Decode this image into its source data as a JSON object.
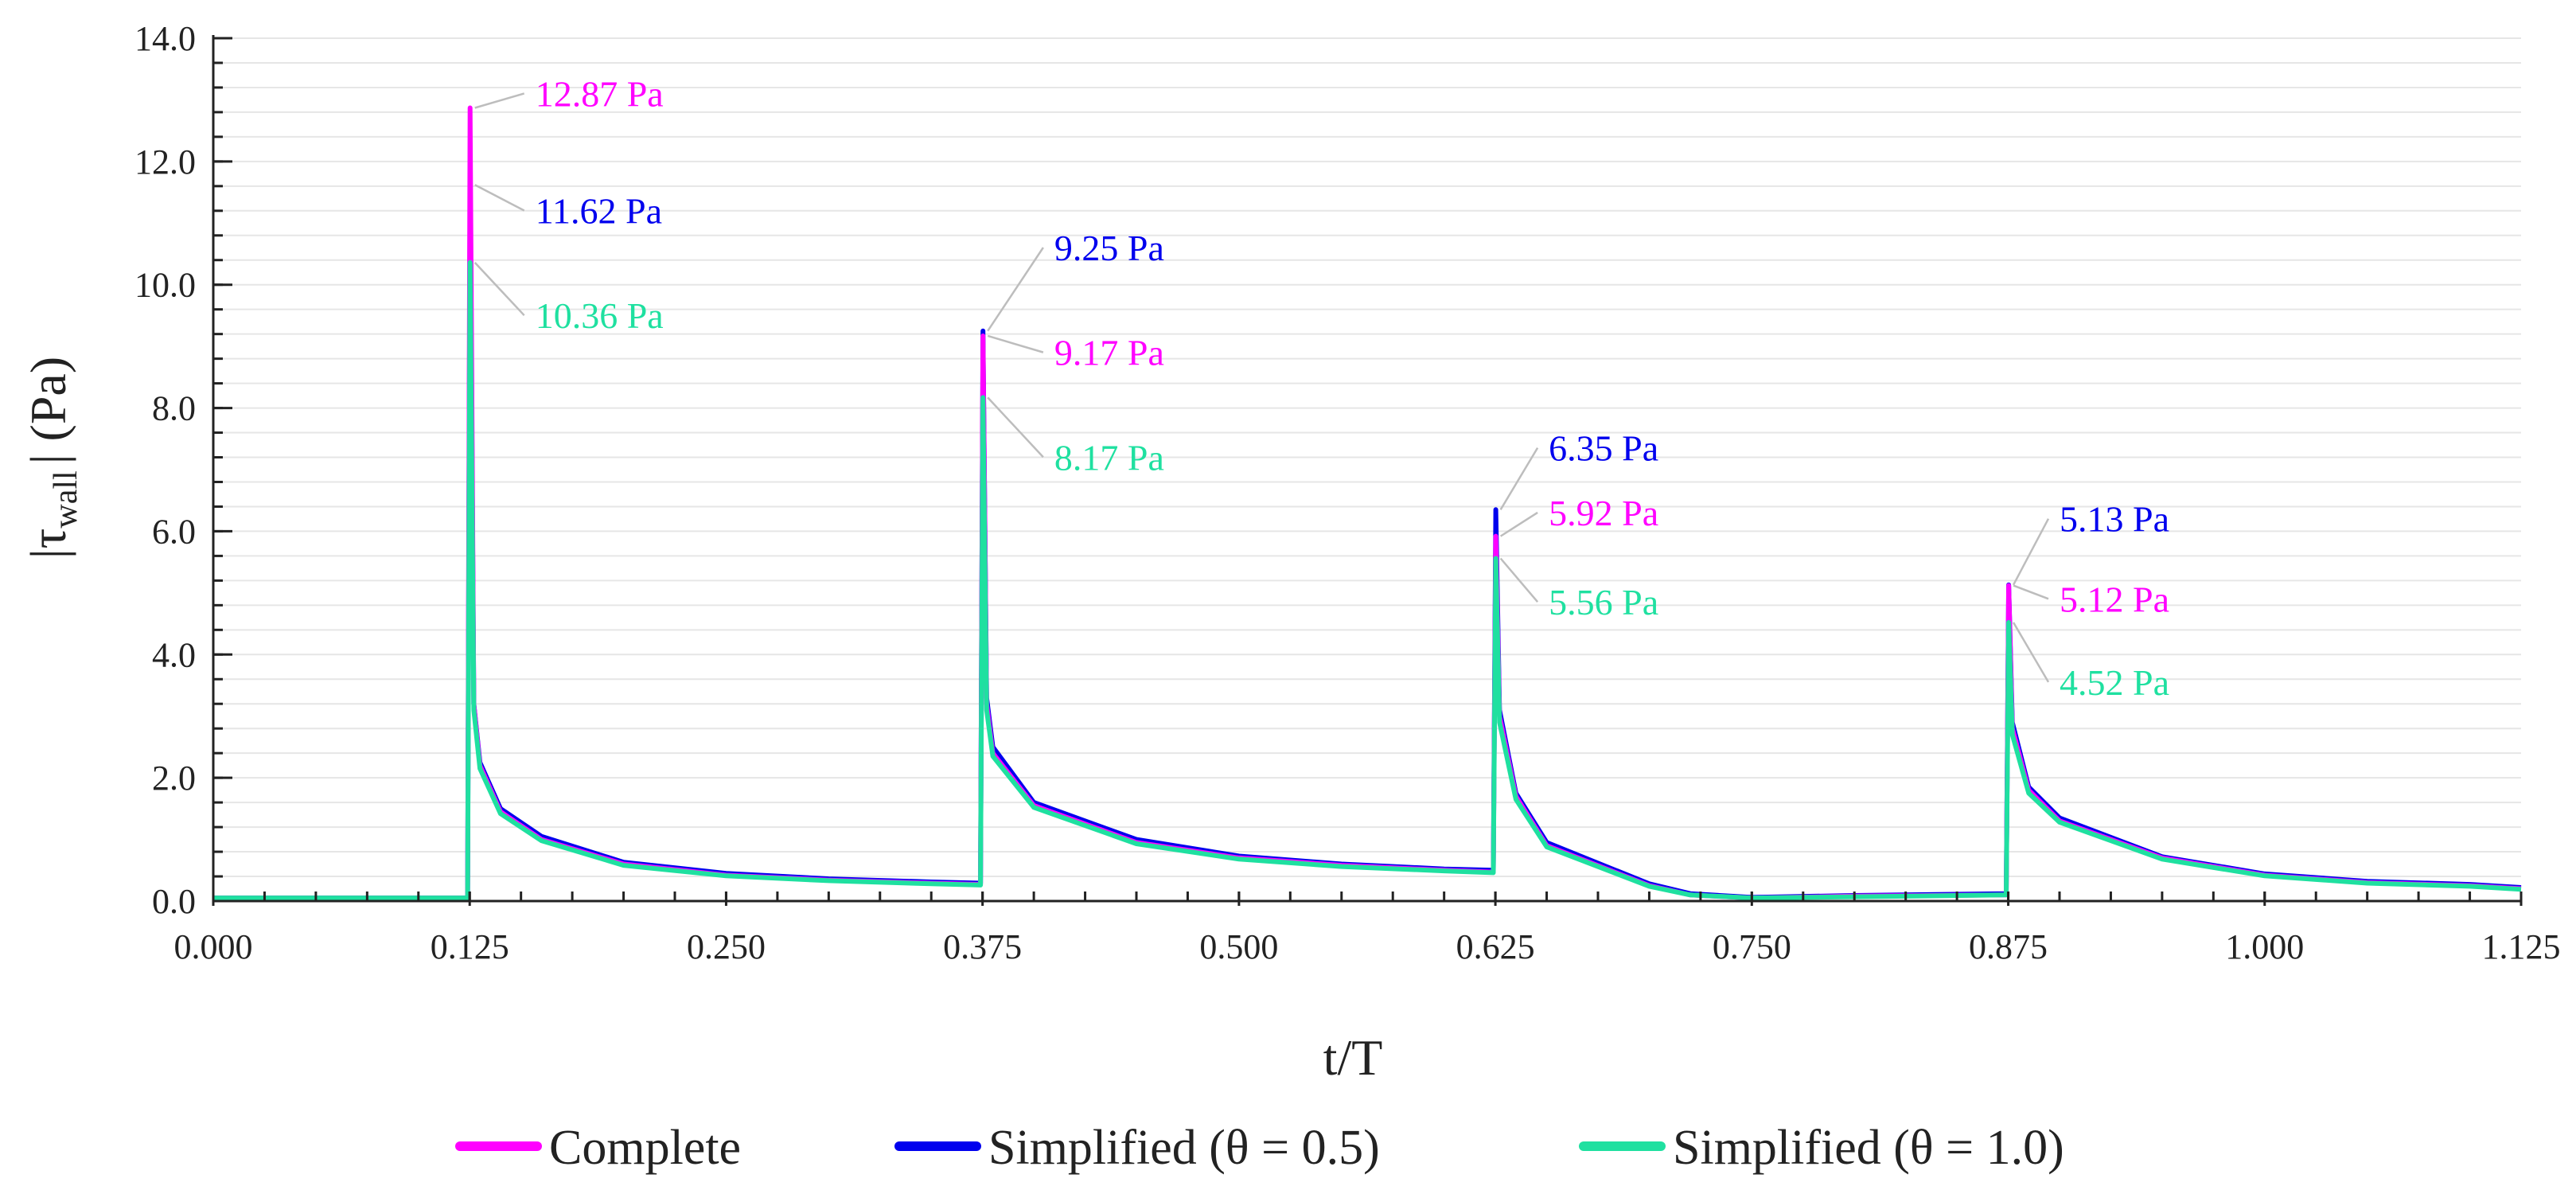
{
  "chart_data": {
    "type": "line",
    "title": "",
    "xlabel": "t/T",
    "ylabel_prefix": "|τ",
    "ylabel_sub": "wall",
    "ylabel_suffix": "| (Pa)",
    "xlim": [
      0,
      1.125
    ],
    "ylim": [
      0,
      14
    ],
    "x_ticks": [
      0,
      0.125,
      0.25,
      0.375,
      0.5,
      0.625,
      0.75,
      0.875,
      1.0,
      1.125
    ],
    "x_tick_labels": [
      "0.000",
      "0.125",
      "0.250",
      "0.375",
      "0.500",
      "0.625",
      "0.750",
      "0.875",
      "1.000",
      "1.125"
    ],
    "y_ticks": [
      0,
      2,
      4,
      6,
      8,
      10,
      12,
      14
    ],
    "y_tick_labels": [
      "0.0",
      "2.0",
      "4.0",
      "6.0",
      "8.0",
      "10.0",
      "12.0",
      "14.0"
    ],
    "grid": true,
    "legend_position": "bottom",
    "series": [
      {
        "name": "Complete",
        "color": "#ff00ff",
        "points": [
          [
            0,
            0.05
          ],
          [
            0.124,
            0.05
          ],
          [
            0.1252,
            12.87
          ],
          [
            0.127,
            3.2
          ],
          [
            0.13,
            2.2
          ],
          [
            0.14,
            1.45
          ],
          [
            0.16,
            1.0
          ],
          [
            0.2,
            0.6
          ],
          [
            0.25,
            0.42
          ],
          [
            0.3,
            0.34
          ],
          [
            0.35,
            0.29
          ],
          [
            0.374,
            0.27
          ],
          [
            0.3752,
            9.17
          ],
          [
            0.377,
            3.2
          ],
          [
            0.38,
            2.4
          ],
          [
            0.4,
            1.55
          ],
          [
            0.45,
            0.95
          ],
          [
            0.5,
            0.7
          ],
          [
            0.55,
            0.58
          ],
          [
            0.6,
            0.5
          ],
          [
            0.624,
            0.47
          ],
          [
            0.6252,
            5.92
          ],
          [
            0.627,
            3.0
          ],
          [
            0.635,
            1.7
          ],
          [
            0.65,
            0.9
          ],
          [
            0.7,
            0.25
          ],
          [
            0.72,
            0.1
          ],
          [
            0.75,
            0.05
          ],
          [
            0.8,
            0.08
          ],
          [
            0.874,
            0.1
          ],
          [
            0.8752,
            5.12
          ],
          [
            0.877,
            2.8
          ],
          [
            0.885,
            1.8
          ],
          [
            0.9,
            1.3
          ],
          [
            0.95,
            0.7
          ],
          [
            1.0,
            0.42
          ],
          [
            1.05,
            0.3
          ],
          [
            1.1,
            0.25
          ],
          [
            1.125,
            0.2
          ]
        ]
      },
      {
        "name": "Simplified (θ = 0.5)",
        "color": "#0000ee",
        "points": [
          [
            0,
            0.05
          ],
          [
            0.124,
            0.05
          ],
          [
            0.1252,
            11.62
          ],
          [
            0.127,
            3.2
          ],
          [
            0.13,
            2.25
          ],
          [
            0.14,
            1.5
          ],
          [
            0.16,
            1.05
          ],
          [
            0.2,
            0.63
          ],
          [
            0.25,
            0.45
          ],
          [
            0.3,
            0.36
          ],
          [
            0.35,
            0.31
          ],
          [
            0.374,
            0.29
          ],
          [
            0.3752,
            9.25
          ],
          [
            0.377,
            3.3
          ],
          [
            0.38,
            2.5
          ],
          [
            0.4,
            1.6
          ],
          [
            0.45,
            1.0
          ],
          [
            0.5,
            0.73
          ],
          [
            0.55,
            0.6
          ],
          [
            0.6,
            0.52
          ],
          [
            0.624,
            0.5
          ],
          [
            0.6252,
            6.35
          ],
          [
            0.627,
            3.1
          ],
          [
            0.635,
            1.75
          ],
          [
            0.65,
            0.95
          ],
          [
            0.7,
            0.28
          ],
          [
            0.72,
            0.12
          ],
          [
            0.75,
            0.06
          ],
          [
            0.8,
            0.09
          ],
          [
            0.874,
            0.12
          ],
          [
            0.8752,
            5.13
          ],
          [
            0.877,
            2.9
          ],
          [
            0.885,
            1.85
          ],
          [
            0.9,
            1.35
          ],
          [
            0.95,
            0.72
          ],
          [
            1.0,
            0.44
          ],
          [
            1.05,
            0.32
          ],
          [
            1.1,
            0.27
          ],
          [
            1.125,
            0.22
          ]
        ]
      },
      {
        "name": "Simplified (θ = 1.0)",
        "color": "#1fe0a0",
        "points": [
          [
            0,
            0.05
          ],
          [
            0.124,
            0.05
          ],
          [
            0.1252,
            10.36
          ],
          [
            0.127,
            3.1
          ],
          [
            0.13,
            2.15
          ],
          [
            0.14,
            1.42
          ],
          [
            0.16,
            0.98
          ],
          [
            0.2,
            0.58
          ],
          [
            0.25,
            0.41
          ],
          [
            0.3,
            0.33
          ],
          [
            0.35,
            0.28
          ],
          [
            0.374,
            0.26
          ],
          [
            0.3752,
            8.17
          ],
          [
            0.377,
            3.1
          ],
          [
            0.38,
            2.35
          ],
          [
            0.4,
            1.52
          ],
          [
            0.45,
            0.93
          ],
          [
            0.5,
            0.68
          ],
          [
            0.55,
            0.56
          ],
          [
            0.6,
            0.49
          ],
          [
            0.624,
            0.46
          ],
          [
            0.6252,
            5.56
          ],
          [
            0.627,
            2.9
          ],
          [
            0.635,
            1.65
          ],
          [
            0.65,
            0.88
          ],
          [
            0.7,
            0.24
          ],
          [
            0.72,
            0.1
          ],
          [
            0.75,
            0.05
          ],
          [
            0.8,
            0.07
          ],
          [
            0.874,
            0.1
          ],
          [
            0.8752,
            4.52
          ],
          [
            0.877,
            2.7
          ],
          [
            0.885,
            1.75
          ],
          [
            0.9,
            1.28
          ],
          [
            0.95,
            0.68
          ],
          [
            1.0,
            0.41
          ],
          [
            1.05,
            0.29
          ],
          [
            1.1,
            0.24
          ],
          [
            1.125,
            0.19
          ]
        ]
      }
    ],
    "annotations": [
      {
        "text": "12.87 Pa",
        "series": 0,
        "x": 0.1252,
        "y": 12.87,
        "text_x": 0.157,
        "text_y": 13.0
      },
      {
        "text": "11.62 Pa",
        "series": 1,
        "x": 0.1252,
        "y": 11.62,
        "text_x": 0.157,
        "text_y": 11.1
      },
      {
        "text": "10.36 Pa",
        "series": 2,
        "x": 0.1252,
        "y": 10.36,
        "text_x": 0.157,
        "text_y": 9.4
      },
      {
        "text": "9.25 Pa",
        "series": 1,
        "x": 0.3752,
        "y": 9.25,
        "text_x": 0.41,
        "text_y": 10.5
      },
      {
        "text": "9.17 Pa",
        "series": 0,
        "x": 0.3752,
        "y": 9.17,
        "text_x": 0.41,
        "text_y": 8.8
      },
      {
        "text": "8.17 Pa",
        "series": 2,
        "x": 0.3752,
        "y": 8.17,
        "text_x": 0.41,
        "text_y": 7.1
      },
      {
        "text": "6.35 Pa",
        "series": 1,
        "x": 0.6252,
        "y": 6.35,
        "text_x": 0.651,
        "text_y": 7.25
      },
      {
        "text": "5.92 Pa",
        "series": 0,
        "x": 0.6252,
        "y": 5.92,
        "text_x": 0.651,
        "text_y": 6.2
      },
      {
        "text": "5.56 Pa",
        "series": 2,
        "x": 0.6252,
        "y": 5.56,
        "text_x": 0.651,
        "text_y": 4.75
      },
      {
        "text": "5.13 Pa",
        "series": 1,
        "x": 0.8752,
        "y": 5.13,
        "text_x": 0.9,
        "text_y": 6.1
      },
      {
        "text": "5.12 Pa",
        "series": 0,
        "x": 0.8752,
        "y": 5.12,
        "text_x": 0.9,
        "text_y": 4.8
      },
      {
        "text": "4.52 Pa",
        "series": 2,
        "x": 0.8752,
        "y": 4.52,
        "text_x": 0.9,
        "text_y": 3.45
      }
    ]
  }
}
